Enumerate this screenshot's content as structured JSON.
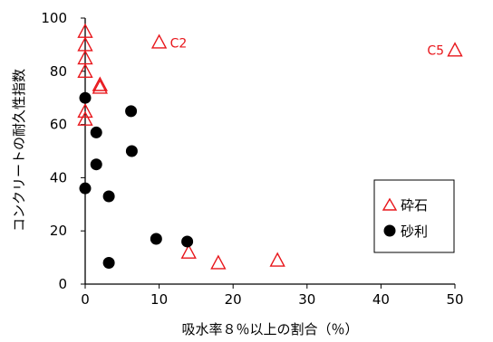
{
  "chart_data": {
    "type": "scatter",
    "xlabel": "吸水率８％以上の割合（％）",
    "ylabel": "コンクリートの耐久性指数",
    "xlim": [
      0,
      50
    ],
    "ylim": [
      0,
      100
    ],
    "x_ticks": [
      "0",
      "10",
      "20",
      "30",
      "40",
      "50"
    ],
    "y_ticks": [
      "0",
      "20",
      "40",
      "60",
      "80",
      "100"
    ],
    "grid": false,
    "legend_position": "bottom-right",
    "series": [
      {
        "name": "砕石",
        "marker": "triangle-open",
        "color": "#e8161b",
        "points": [
          {
            "x": 0,
            "y": 95
          },
          {
            "x": 0,
            "y": 90
          },
          {
            "x": 0,
            "y": 85
          },
          {
            "x": 0,
            "y": 80
          },
          {
            "x": 0,
            "y": 65
          },
          {
            "x": 0,
            "y": 62
          },
          {
            "x": 2,
            "y": 75
          },
          {
            "x": 2,
            "y": 74
          },
          {
            "x": 10,
            "y": 91
          },
          {
            "x": 14,
            "y": 12
          },
          {
            "x": 18,
            "y": 8
          },
          {
            "x": 26,
            "y": 9
          },
          {
            "x": 50,
            "y": 88
          }
        ]
      },
      {
        "name": "砂利",
        "marker": "circle-filled",
        "color": "#000000",
        "points": [
          {
            "x": 0,
            "y": 70
          },
          {
            "x": 0,
            "y": 36
          },
          {
            "x": 1.5,
            "y": 57
          },
          {
            "x": 1.5,
            "y": 45
          },
          {
            "x": 3.2,
            "y": 33
          },
          {
            "x": 3.2,
            "y": 8
          },
          {
            "x": 6.2,
            "y": 65
          },
          {
            "x": 6.3,
            "y": 50
          },
          {
            "x": 9.6,
            "y": 17
          },
          {
            "x": 13.8,
            "y": 16
          }
        ]
      }
    ],
    "annotations": [
      {
        "text": "C2",
        "x": 10,
        "y": 91
      },
      {
        "text": "C5",
        "x": 50,
        "y": 88
      }
    ]
  }
}
